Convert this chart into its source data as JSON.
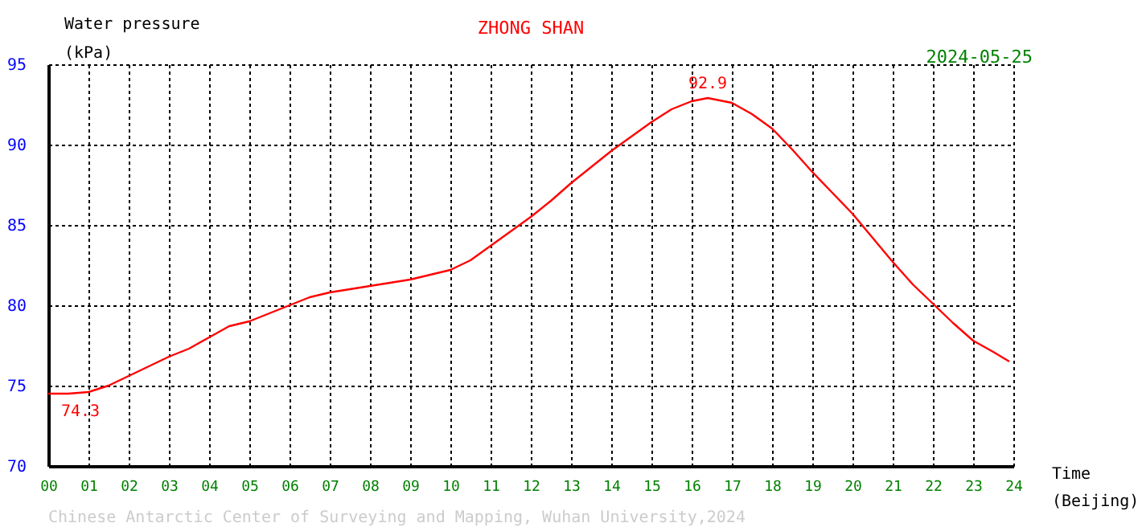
{
  "chart_data": {
    "type": "line",
    "title": "ZHONG SHAN",
    "subtitle": "2024-05-25",
    "xlabel": "Time\n(Beijing)",
    "ylabel": "Water pressure\n(kPa)",
    "xlim": [
      0,
      24
    ],
    "ylim": [
      70,
      95
    ],
    "yticks": [
      70,
      75,
      80,
      85,
      90,
      95
    ],
    "xticks": [
      {
        "value": 0,
        "label": "00"
      },
      {
        "value": 1,
        "label": "01"
      },
      {
        "value": 2,
        "label": "02"
      },
      {
        "value": 3,
        "label": "03"
      },
      {
        "value": 4,
        "label": "04"
      },
      {
        "value": 5,
        "label": "05"
      },
      {
        "value": 6,
        "label": "06"
      },
      {
        "value": 7,
        "label": "07"
      },
      {
        "value": 8,
        "label": "08"
      },
      {
        "value": 9,
        "label": "09"
      },
      {
        "value": 10,
        "label": "10"
      },
      {
        "value": 11,
        "label": "11"
      },
      {
        "value": 12,
        "label": "12"
      },
      {
        "value": 13,
        "label": "13"
      },
      {
        "value": 14,
        "label": "14"
      },
      {
        "value": 15,
        "label": "15"
      },
      {
        "value": 16,
        "label": "16"
      },
      {
        "value": 17,
        "label": "17"
      },
      {
        "value": 18,
        "label": "18"
      },
      {
        "value": 19,
        "label": "19"
      },
      {
        "value": 20,
        "label": "20"
      },
      {
        "value": 21,
        "label": "21"
      },
      {
        "value": 22,
        "label": "22"
      },
      {
        "value": 23,
        "label": "23"
      },
      {
        "value": 24,
        "label": "24"
      }
    ],
    "grid": true,
    "legend": false,
    "marker": "none",
    "line_style": "solid",
    "series": [
      {
        "color": "#ff0000",
        "x": [
          0,
          0.5,
          1,
          1.5,
          2,
          2.5,
          3,
          3.5,
          4,
          4.5,
          5,
          5.5,
          6,
          6.5,
          7,
          7.5,
          8,
          8.5,
          9,
          9.5,
          10,
          10.5,
          11,
          11.5,
          12,
          12.5,
          13,
          13.5,
          14,
          14.5,
          15,
          15.5,
          16,
          16.4,
          17,
          17.5,
          18,
          18.5,
          19,
          19.5,
          20,
          20.5,
          21,
          21.5,
          22,
          22.5,
          23,
          23.5,
          23.9
        ],
        "values": [
          74.5,
          74.5,
          74.6,
          75.0,
          75.6,
          76.2,
          76.8,
          77.3,
          78.0,
          78.7,
          79.0,
          79.5,
          80.0,
          80.5,
          80.8,
          81.0,
          81.2,
          81.4,
          81.6,
          81.9,
          82.2,
          82.8,
          83.7,
          84.6,
          85.5,
          86.5,
          87.6,
          88.6,
          89.6,
          90.5,
          91.4,
          92.2,
          92.7,
          92.9,
          92.6,
          91.9,
          91.0,
          89.7,
          88.3,
          87.0,
          85.7,
          84.2,
          82.7,
          81.3,
          80.1,
          78.9,
          77.8,
          77.1,
          76.5
        ]
      }
    ],
    "annotations": [
      {
        "text": "92.9",
        "x": 16.4,
        "y": 92.9
      },
      {
        "text": "74.3",
        "x": 0.8,
        "y": 74.3
      },
      "Chinese Antarctic Center of Surveying and Mapping, Wuhan University,2024"
    ]
  }
}
